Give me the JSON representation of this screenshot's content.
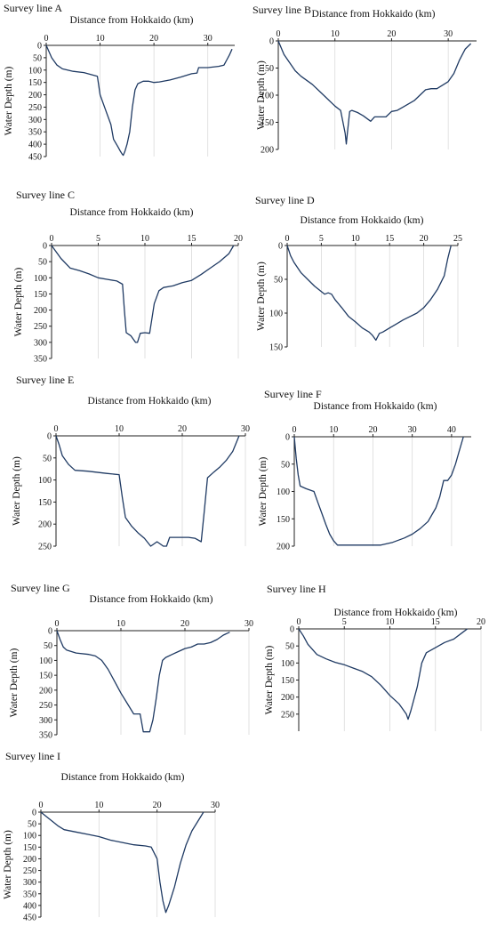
{
  "figure": {
    "xlabel": "Distance from Hokkaido (km)",
    "ylabel": "Water Depth (m)",
    "line_color": "#1f3a63",
    "grid_color": "#dadada"
  },
  "chart_data": [
    {
      "type": "line",
      "title": "Survey line A",
      "xlabel": "Distance from Hokkaido (km)",
      "ylabel": "Water Depth (m)",
      "xlim": [
        0,
        35
      ],
      "xticks": [
        0,
        10,
        20,
        30
      ],
      "ylim": [
        0,
        450
      ],
      "yticks": [
        0,
        50,
        100,
        150,
        200,
        250,
        300,
        350,
        400,
        450
      ],
      "y_inverted": true,
      "grid": "vertical",
      "series": [
        {
          "x": [
            0,
            1,
            2,
            3,
            5,
            7,
            9.5,
            10,
            11,
            12,
            12.5,
            13.3,
            13.8,
            14.1,
            14.3,
            14.6,
            15,
            15.5,
            16,
            16.5,
            17,
            18,
            19,
            20,
            21,
            23,
            25,
            27,
            28,
            28.3,
            30,
            32,
            33,
            34,
            34.5
          ],
          "y": [
            0,
            50,
            80,
            95,
            105,
            110,
            125,
            200,
            260,
            320,
            380,
            410,
            430,
            440,
            445,
            430,
            400,
            350,
            250,
            180,
            155,
            145,
            145,
            150,
            148,
            140,
            128,
            115,
            112,
            90,
            90,
            85,
            80,
            40,
            15
          ]
        }
      ]
    },
    {
      "type": "line",
      "title": "Survey line B",
      "xlabel": "Distance from Hokkaido (km)",
      "ylabel": "Water Depth (m)",
      "xlim": [
        0,
        35
      ],
      "xticks": [
        0,
        10,
        20,
        30
      ],
      "ylim": [
        0,
        200
      ],
      "yticks": [
        0,
        50,
        100,
        150,
        200
      ],
      "y_inverted": true,
      "grid": "vertical",
      "series": [
        {
          "x": [
            0,
            1,
            2,
            3,
            4,
            6,
            8,
            10,
            11,
            11.8,
            12,
            12.2,
            12.6,
            13,
            14,
            15,
            16.3,
            17,
            18,
            19,
            20,
            21,
            22,
            24,
            25,
            26,
            27,
            28,
            30,
            31,
            32,
            33,
            34
          ],
          "y": [
            0,
            25,
            40,
            55,
            65,
            80,
            100,
            120,
            128,
            170,
            190,
            170,
            130,
            128,
            132,
            138,
            148,
            140,
            140,
            140,
            130,
            128,
            122,
            110,
            100,
            90,
            88,
            88,
            75,
            60,
            35,
            15,
            5
          ]
        }
      ]
    },
    {
      "type": "line",
      "title": "Survey line C",
      "xlabel": "Distance from Hokkaido (km)",
      "ylabel": "Water Depth (m)",
      "xlim": [
        0,
        20
      ],
      "xticks": [
        0,
        5,
        10,
        15,
        20
      ],
      "ylim": [
        0,
        350
      ],
      "yticks": [
        0,
        50,
        100,
        150,
        200,
        250,
        300,
        350
      ],
      "y_inverted": true,
      "grid": "vertical",
      "series": [
        {
          "x": [
            0,
            1,
            2,
            3,
            4,
            5,
            6,
            7,
            7.6,
            7.8,
            8,
            8.5,
            9,
            9.2,
            9.5,
            10,
            10.5,
            11,
            11.5,
            12,
            13,
            14,
            15,
            16,
            17,
            18,
            19,
            19.5
          ],
          "y": [
            0,
            40,
            70,
            78,
            88,
            100,
            105,
            110,
            120,
            200,
            270,
            280,
            300,
            300,
            272,
            270,
            272,
            180,
            140,
            130,
            125,
            115,
            108,
            90,
            70,
            50,
            25,
            0
          ]
        }
      ]
    },
    {
      "type": "line",
      "title": "Survey line D",
      "xlabel": "Distance from Hokkaido (km)",
      "ylabel": "Water Depth (m)",
      "xlim": [
        0,
        25
      ],
      "xticks": [
        0,
        5,
        10,
        15,
        20,
        25
      ],
      "ylim": [
        0,
        150
      ],
      "yticks": [
        0,
        50,
        100,
        150
      ],
      "y_inverted": true,
      "grid": "vertical",
      "series": [
        {
          "x": [
            0,
            0.5,
            1,
            2,
            3,
            4,
            5,
            5.5,
            6,
            6.5,
            7,
            8,
            9,
            10,
            11,
            12,
            12.5,
            13,
            13.5,
            14,
            15,
            16,
            17,
            18,
            19,
            20,
            21,
            22,
            23,
            23.5,
            24
          ],
          "y": [
            0,
            15,
            25,
            40,
            50,
            60,
            68,
            72,
            70,
            72,
            80,
            92,
            105,
            113,
            122,
            128,
            133,
            140,
            130,
            128,
            122,
            116,
            110,
            105,
            100,
            92,
            80,
            65,
            45,
            20,
            0
          ]
        }
      ]
    },
    {
      "type": "line",
      "title": "Survey line E",
      "xlabel": "Distance from Hokkaido (km)",
      "ylabel": "Water Depth (m)",
      "xlim": [
        0,
        30
      ],
      "xticks": [
        0,
        10,
        20,
        30
      ],
      "ylim": [
        0,
        250
      ],
      "yticks": [
        0,
        50,
        100,
        150,
        200,
        250
      ],
      "y_inverted": true,
      "grid": "vertical",
      "series": [
        {
          "x": [
            0,
            0.5,
            1,
            2,
            3,
            5,
            8,
            10,
            10.5,
            11,
            12,
            13,
            14,
            15,
            15.5,
            16,
            16.5,
            17,
            17.5,
            18,
            19,
            20,
            21,
            22,
            23,
            23.5,
            24,
            25,
            26,
            27,
            28,
            29
          ],
          "y": [
            0,
            20,
            45,
            65,
            78,
            80,
            85,
            88,
            140,
            185,
            205,
            220,
            232,
            250,
            245,
            240,
            245,
            250,
            250,
            230,
            230,
            230,
            230,
            232,
            240,
            170,
            95,
            82,
            70,
            55,
            35,
            0
          ]
        }
      ]
    },
    {
      "type": "line",
      "title": "Survey line F",
      "xlabel": "Distance from Hokkaido (km)",
      "ylabel": "Water Depth (m)",
      "xlim": [
        0,
        45
      ],
      "xticks": [
        0,
        10,
        20,
        30,
        40
      ],
      "ylim": [
        0,
        200
      ],
      "yticks": [
        0,
        50,
        100,
        150,
        200
      ],
      "y_inverted": true,
      "grid": "vertical",
      "series": [
        {
          "x": [
            0,
            0.5,
            1,
            1.5,
            3,
            5,
            6,
            7,
            8,
            9,
            10,
            11,
            13,
            16,
            20,
            22,
            25,
            28,
            30,
            32,
            34,
            36,
            37,
            38,
            39,
            40,
            41,
            42,
            43
          ],
          "y": [
            0,
            40,
            70,
            90,
            95,
            100,
            120,
            140,
            160,
            178,
            190,
            198,
            198,
            198,
            198,
            198,
            193,
            185,
            178,
            168,
            155,
            130,
            110,
            80,
            80,
            70,
            50,
            25,
            0
          ]
        }
      ]
    },
    {
      "type": "line",
      "title": "Survey line G",
      "xlabel": "Distance from Hokkaido (km)",
      "ylabel": "Water Depth (m)",
      "xlim": [
        0,
        30
      ],
      "xticks": [
        0,
        10,
        20,
        30
      ],
      "ylim": [
        0,
        350
      ],
      "yticks": [
        0,
        50,
        100,
        150,
        200,
        250,
        300,
        350
      ],
      "y_inverted": true,
      "grid": "vertical",
      "series": [
        {
          "x": [
            0,
            0.5,
            1,
            1.5,
            3,
            5,
            6,
            7,
            8,
            9,
            10,
            11,
            12,
            12.5,
            13,
            13.5,
            14,
            14.5,
            15,
            15.5,
            16,
            16.5,
            17,
            18,
            19,
            20,
            21,
            22,
            23,
            24,
            25,
            26,
            27
          ],
          "y": [
            0,
            30,
            55,
            65,
            75,
            80,
            85,
            100,
            130,
            170,
            210,
            245,
            280,
            280,
            280,
            340,
            340,
            340,
            300,
            230,
            150,
            100,
            90,
            80,
            70,
            60,
            55,
            45,
            45,
            40,
            30,
            15,
            5
          ]
        }
      ]
    },
    {
      "type": "line",
      "title": "Survey line H",
      "xlabel": "Distance from Hokkaido (km)",
      "ylabel": "Water Depth (m)",
      "xlim": [
        0,
        20
      ],
      "xticks": [
        0,
        5,
        10,
        15,
        20
      ],
      "ylim": [
        0,
        300
      ],
      "yticks": [
        0,
        50,
        100,
        150,
        200,
        250
      ],
      "y_inverted": true,
      "grid": "vertical",
      "series": [
        {
          "x": [
            0,
            0.5,
            1,
            2,
            3,
            4,
            5,
            6,
            7,
            8,
            9,
            10,
            11,
            11.8,
            12,
            12.3,
            13,
            13.5,
            14,
            15,
            16,
            17,
            18,
            18.5
          ],
          "y": [
            0,
            20,
            45,
            75,
            88,
            98,
            105,
            115,
            125,
            140,
            165,
            195,
            220,
            250,
            265,
            240,
            170,
            100,
            70,
            55,
            40,
            30,
            10,
            0
          ]
        }
      ]
    },
    {
      "type": "line",
      "title": "Survey line I",
      "xlabel": "Distance from Hokkaido (km)",
      "ylabel": "Water Depth (m)",
      "xlim": [
        0,
        30
      ],
      "xticks": [
        0,
        10,
        20,
        30
      ],
      "ylim": [
        0,
        450
      ],
      "yticks": [
        0,
        50,
        100,
        150,
        200,
        250,
        300,
        350,
        400,
        450
      ],
      "y_inverted": true,
      "grid": "vertical",
      "series": [
        {
          "x": [
            0,
            1,
            2,
            3,
            4,
            6,
            8,
            10,
            12,
            14,
            16,
            18,
            19,
            20,
            20.5,
            21,
            21.5,
            22,
            23,
            24,
            25,
            26,
            27,
            28
          ],
          "y": [
            0,
            20,
            40,
            60,
            75,
            85,
            95,
            105,
            120,
            130,
            140,
            145,
            150,
            200,
            300,
            380,
            430,
            400,
            320,
            220,
            140,
            80,
            40,
            0
          ]
        }
      ]
    }
  ]
}
